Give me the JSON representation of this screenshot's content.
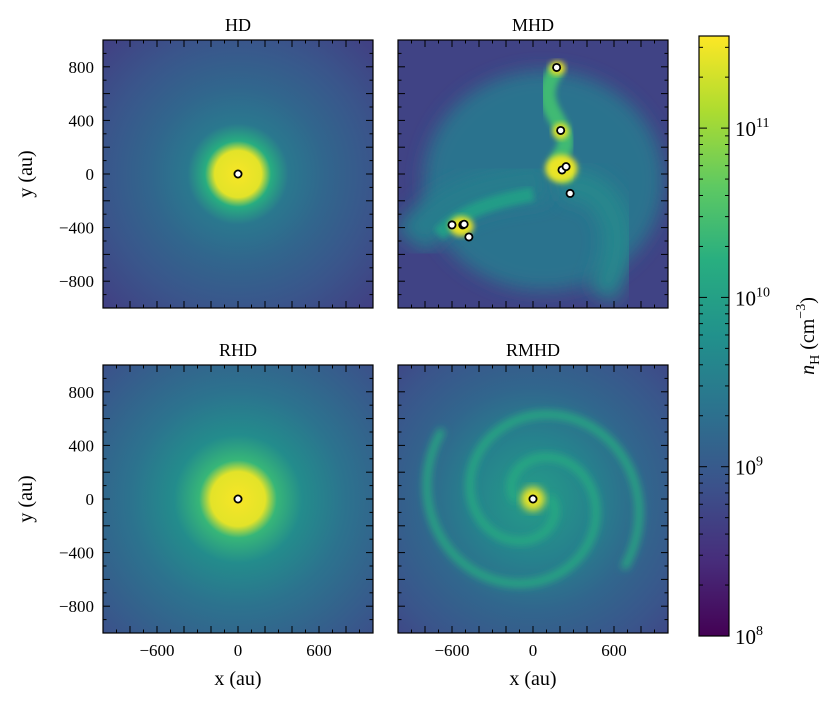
{
  "chart_data": {
    "type": "heatmap",
    "panels": [
      {
        "title": "HD",
        "structure": "single_core",
        "sinks": [
          [
            0,
            0
          ]
        ]
      },
      {
        "title": "MHD",
        "structure": "fragmented_spiral",
        "sinks": [
          [
            175,
            795
          ],
          [
            205,
            325
          ],
          [
            215,
            30
          ],
          [
            245,
            55
          ],
          [
            275,
            -145
          ],
          [
            -600,
            -380
          ],
          [
            -520,
            -380
          ],
          [
            -510,
            -375
          ],
          [
            -475,
            -470
          ]
        ]
      },
      {
        "title": "RHD",
        "structure": "single_core_broad",
        "sinks": [
          [
            0,
            0
          ]
        ]
      },
      {
        "title": "RMHD",
        "structure": "spiral_disk",
        "sinks": [
          [
            0,
            0
          ]
        ]
      }
    ],
    "xlim": [
      -1000,
      1000
    ],
    "ylim": [
      -1000,
      1000
    ],
    "xticks": [
      -600,
      0,
      600
    ],
    "yticks": [
      800,
      400,
      0,
      -400,
      -800
    ],
    "xlabel": "x (au)",
    "ylabel": "y (au)",
    "colorbar": {
      "label": "n_H (cm^-3)",
      "scale": "log",
      "range": [
        100000000.0,
        350000000000.0
      ],
      "ticks": [
        "10^8",
        "10^9",
        "10^10",
        "10^11"
      ],
      "colormap": "viridis"
    }
  },
  "labels": {
    "tick_minus": "−",
    "base": "10",
    "nH_n": "n",
    "nH_sub": "H",
    "nH_unit": " (cm",
    "nH_exp": "−3",
    "nH_close": ")"
  }
}
